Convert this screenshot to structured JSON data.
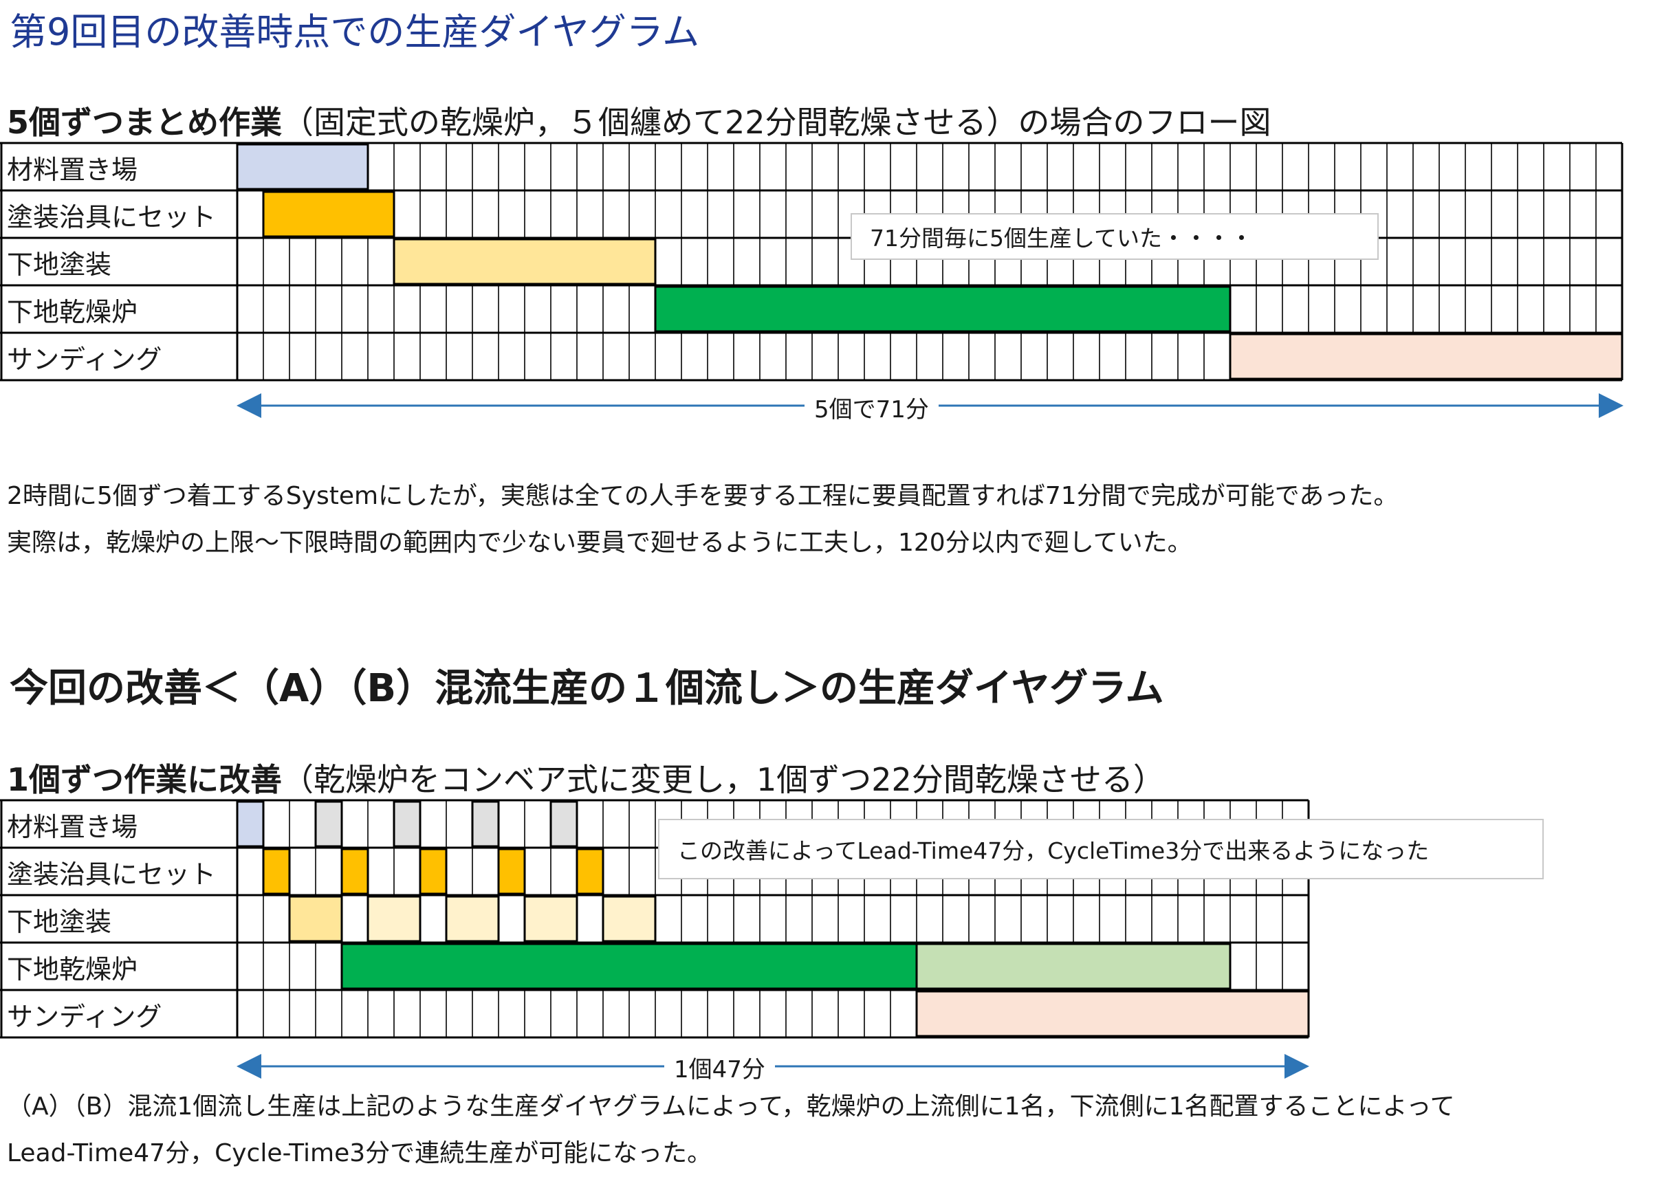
{
  "title": "第9回目の改善時点での生産ダイヤグラム",
  "chart1": {
    "subtitle_bold": "5個ずつまとめ作業",
    "subtitle_rest": "（固定式の乾燥炉，５個纏めて22分間乾燥させる）の場合のフロー図",
    "rows": [
      "材料置き場",
      "塗装治具にセット",
      "下地塗装",
      "下地乾燥炉",
      "サンディング"
    ],
    "callout": "71分間毎に5個生産していた・・・・",
    "arrow_label": "5個で71分",
    "colors": {
      "material": "#cfd8ee",
      "jig": "#ffc000",
      "coat": "#ffe699",
      "dry": "#00b050",
      "sand": "#fbe3d6"
    }
  },
  "para1": [
    "2時間に5個ずつ着工するSystemにしたが，実態は全ての人手を要する工程に要員配置すれば71分間で完成が可能であった。",
    "実際は，乾燥炉の上限～下限時間の範囲内で少ない要員で廻せるように工夫し，120分以内で廻していた。"
  ],
  "section2_title": "今回の改善＜（A）（B）混流生産の１個流し＞の生産ダイヤグラム",
  "chart2": {
    "subtitle_bold": "1個ずつ作業に改善",
    "subtitle_rest": "（乾燥炉をコンベア式に変更し，1個ずつ22分間乾燥させる）",
    "rows": [
      "材料置き場",
      "塗装治具にセット",
      "下地塗装",
      "下地乾燥炉",
      "サンディング"
    ],
    "callout": "この改善によってLead-Time47分，CycleTime3分で出来るようになった",
    "arrow_label": "1個47分",
    "colors": {
      "material_first": "#cfd8ee",
      "material": "#e0e0e0",
      "jig": "#ffc000",
      "coat_first": "#ffe699",
      "coat": "#fff2cc",
      "dry": "#00b050",
      "dry_light": "#c5e0b4",
      "sand": "#fbe3d6",
      "arrow": "#2e75b6"
    }
  },
  "para2": [
    "（A）（B）混流1個流し生産は上記のような生産ダイヤグラムによって，乾燥炉の上流側に1名，下流側に1名配置することによって",
    "Lead-Time47分，Cycle-Time3分で連続生産が可能になった。"
  ]
}
